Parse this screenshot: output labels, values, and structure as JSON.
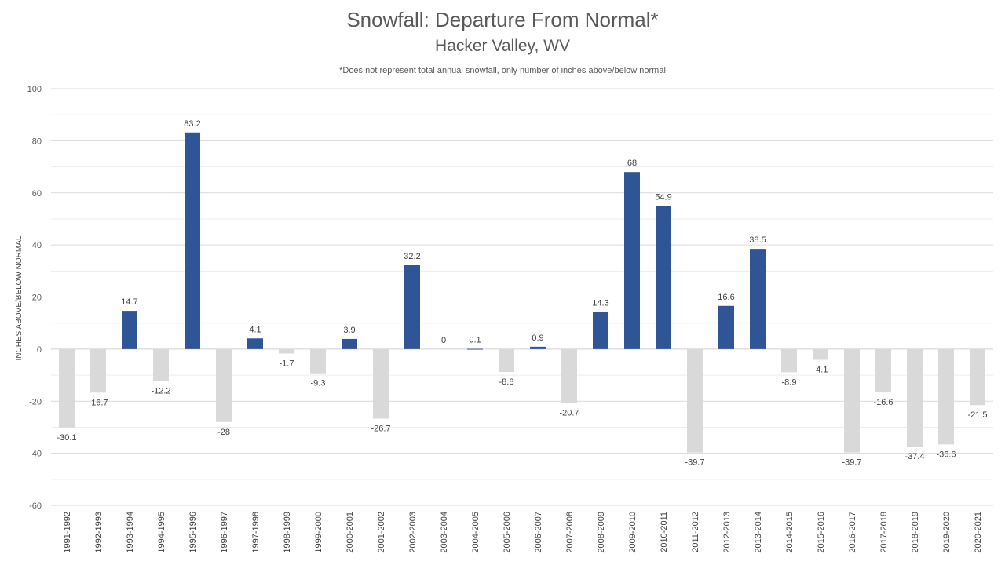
{
  "chart_data": {
    "type": "bar",
    "title": "Snowfall: Departure From Normal*",
    "subtitle": "Hacker Valley, WV",
    "note": "*Does not represent  total annual snowfall, only number of inches above/below normal",
    "ylabel": "INCHES ABOVE/BELOW NORMAL",
    "xlabel": "",
    "ylim": [
      -60,
      100
    ],
    "yticks": [
      100,
      80,
      60,
      40,
      20,
      0,
      -20,
      -40,
      -60
    ],
    "grid": "on",
    "categories": [
      "1991-1992",
      "1992-1993",
      "1993-1994",
      "1994-1995",
      "1995-1996",
      "1996-1997",
      "1997-1998",
      "1998-1999",
      "1999-2000",
      "2000-2001",
      "2001-2002",
      "2002-2003",
      "2003-2004",
      "2004-2005",
      "2005-2006",
      "2006-2007",
      "2007-2008",
      "2008-2009",
      "2009-2010",
      "2010-2011",
      "2011-2012",
      "2012-2013",
      "2013-2014",
      "2014-2015",
      "2015-2016",
      "2016-2017",
      "2017-2018",
      "2018-2019",
      "2019-2020",
      "2020-2021"
    ],
    "values": [
      -30.1,
      -16.7,
      14.7,
      -12.2,
      83.2,
      -28,
      4.1,
      -1.7,
      -9.3,
      3.9,
      -26.7,
      32.2,
      0,
      0.1,
      -8.8,
      0.9,
      -20.7,
      14.3,
      68,
      54.9,
      -39.7,
      16.6,
      38.5,
      -8.9,
      -4.1,
      -39.7,
      -16.6,
      -37.4,
      -36.6,
      -21.5
    ],
    "data_labels": [
      "-30.1",
      "-16.7",
      "14.7",
      "-12.2",
      "83.2",
      "-28",
      "4.1",
      "-1.7",
      "-9.3",
      "3.9",
      "-26.7",
      "32.2",
      "0",
      "0.1",
      "-8.8",
      "0.9",
      "-20.7",
      "14.3",
      "68",
      "54.9",
      "-39.7",
      "16.6",
      "38.5",
      "-8.9",
      "-4.1",
      "-39.7",
      "-16.6",
      "-37.4",
      "-36.6",
      "-21.5"
    ],
    "colors": {
      "positive": "#2F5597",
      "negative": "#D9D9D9",
      "grid": "#E0E0E0",
      "zero_line": "#D0D0D0",
      "text": "#595959"
    }
  }
}
